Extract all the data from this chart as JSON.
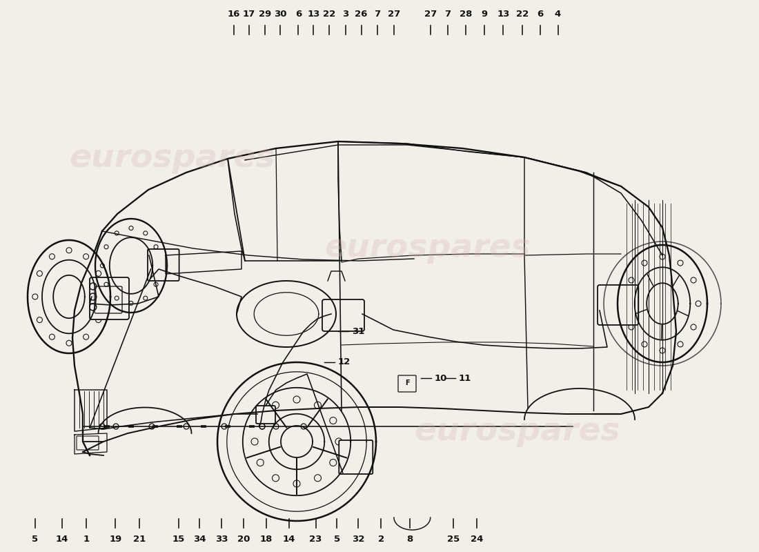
{
  "background_color": "#f2efe9",
  "watermark_color": "#d4b8b0",
  "watermark_alpha": 0.3,
  "line_color": "#111111",
  "line_width": 1.3,
  "top_labels_left": [
    {
      "num": "16",
      "xf": 0.308,
      "yf": 0.96
    },
    {
      "num": "17",
      "xf": 0.328,
      "yf": 0.96
    },
    {
      "num": "29",
      "xf": 0.349,
      "yf": 0.96
    },
    {
      "num": "30",
      "xf": 0.369,
      "yf": 0.96
    },
    {
      "num": "6",
      "xf": 0.393,
      "yf": 0.96
    },
    {
      "num": "13",
      "xf": 0.413,
      "yf": 0.96
    },
    {
      "num": "22",
      "xf": 0.434,
      "yf": 0.96
    },
    {
      "num": "3",
      "xf": 0.455,
      "yf": 0.96
    },
    {
      "num": "26",
      "xf": 0.476,
      "yf": 0.96
    },
    {
      "num": "7",
      "xf": 0.497,
      "yf": 0.96
    },
    {
      "num": "27",
      "xf": 0.519,
      "yf": 0.96
    }
  ],
  "top_labels_right": [
    {
      "num": "27",
      "xf": 0.567,
      "yf": 0.96
    },
    {
      "num": "7",
      "xf": 0.59,
      "yf": 0.96
    },
    {
      "num": "28",
      "xf": 0.614,
      "yf": 0.96
    },
    {
      "num": "9",
      "xf": 0.638,
      "yf": 0.96
    },
    {
      "num": "13",
      "xf": 0.663,
      "yf": 0.96
    },
    {
      "num": "22",
      "xf": 0.688,
      "yf": 0.96
    },
    {
      "num": "6",
      "xf": 0.712,
      "yf": 0.96
    },
    {
      "num": "4",
      "xf": 0.735,
      "yf": 0.96
    }
  ],
  "bottom_labels": [
    {
      "num": "5",
      "xf": 0.046,
      "yf": 0.038
    },
    {
      "num": "14",
      "xf": 0.082,
      "yf": 0.038
    },
    {
      "num": "1",
      "xf": 0.114,
      "yf": 0.038
    },
    {
      "num": "19",
      "xf": 0.152,
      "yf": 0.038
    },
    {
      "num": "21",
      "xf": 0.184,
      "yf": 0.038
    },
    {
      "num": "15",
      "xf": 0.235,
      "yf": 0.038
    },
    {
      "num": "34",
      "xf": 0.263,
      "yf": 0.038
    },
    {
      "num": "33",
      "xf": 0.292,
      "yf": 0.038
    },
    {
      "num": "20",
      "xf": 0.321,
      "yf": 0.038
    },
    {
      "num": "18",
      "xf": 0.351,
      "yf": 0.038
    },
    {
      "num": "14",
      "xf": 0.381,
      "yf": 0.038
    },
    {
      "num": "23",
      "xf": 0.416,
      "yf": 0.038
    },
    {
      "num": "5",
      "xf": 0.444,
      "yf": 0.038
    },
    {
      "num": "32",
      "xf": 0.472,
      "yf": 0.038
    },
    {
      "num": "2",
      "xf": 0.502,
      "yf": 0.038
    },
    {
      "num": "8",
      "xf": 0.54,
      "yf": 0.038
    },
    {
      "num": "25",
      "xf": 0.597,
      "yf": 0.038
    },
    {
      "num": "24",
      "xf": 0.628,
      "yf": 0.038
    }
  ],
  "font_size": 9.5
}
